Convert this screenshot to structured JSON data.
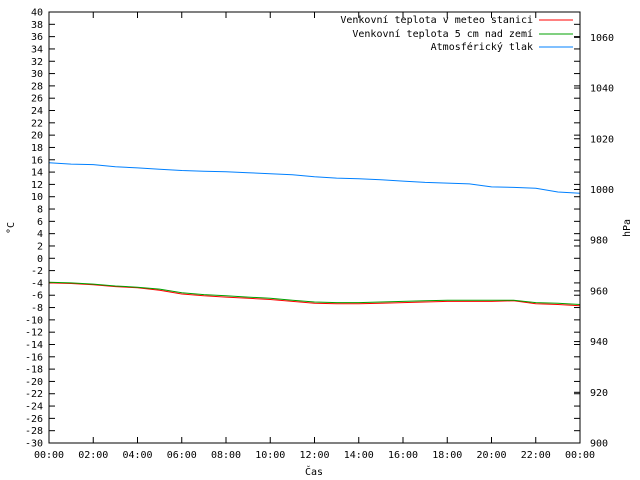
{
  "chart_data": {
    "type": "line",
    "xlabel": "Čas",
    "ylabel": "°C",
    "y2label": "hPa",
    "grid": false,
    "legend_position": "top-right",
    "x_ticks": [
      "00:00",
      "02:00",
      "04:00",
      "06:00",
      "08:00",
      "10:00",
      "12:00",
      "14:00",
      "16:00",
      "18:00",
      "20:00",
      "22:00",
      "00:00"
    ],
    "x_range_hours": [
      0,
      24
    ],
    "y_range": [
      -30,
      40
    ],
    "y_ticks": [
      40,
      38,
      36,
      34,
      32,
      30,
      28,
      26,
      24,
      22,
      20,
      18,
      16,
      14,
      12,
      10,
      8,
      6,
      4,
      2,
      0,
      -2,
      -4,
      -6,
      -8,
      -10,
      -12,
      -14,
      -16,
      -18,
      -20,
      -22,
      -24,
      -26,
      -28,
      -30
    ],
    "y2_range": [
      900,
      1070
    ],
    "y2_ticks": [
      1060,
      1040,
      1020,
      1000,
      980,
      960,
      940,
      920,
      900
    ],
    "series": [
      {
        "name": "Venkovní teplota v meteo stanici",
        "axis": "y",
        "color": "#ff0000",
        "x": [
          0,
          1,
          2,
          3,
          4,
          5,
          6,
          7,
          8,
          9,
          10,
          11,
          12,
          13,
          14,
          15,
          16,
          17,
          18,
          19,
          20,
          21,
          22,
          23,
          24
        ],
        "values": [
          -4.0,
          -4.1,
          -4.3,
          -4.6,
          -4.8,
          -5.2,
          -5.8,
          -6.1,
          -6.3,
          -6.5,
          -6.7,
          -7.0,
          -7.3,
          -7.4,
          -7.4,
          -7.3,
          -7.2,
          -7.1,
          -7.0,
          -7.0,
          -7.0,
          -6.9,
          -7.4,
          -7.5,
          -7.7
        ]
      },
      {
        "name": "Venkovní teplota 5 cm nad zemí",
        "axis": "y",
        "color": "#00a000",
        "x": [
          0,
          1,
          2,
          3,
          4,
          5,
          6,
          7,
          8,
          9,
          10,
          11,
          12,
          13,
          14,
          15,
          16,
          17,
          18,
          19,
          20,
          21,
          22,
          23,
          24
        ],
        "values": [
          -3.9,
          -4.0,
          -4.2,
          -4.5,
          -4.7,
          -5.0,
          -5.6,
          -5.9,
          -6.1,
          -6.3,
          -6.5,
          -6.8,
          -7.1,
          -7.2,
          -7.2,
          -7.1,
          -7.0,
          -6.9,
          -6.8,
          -6.8,
          -6.8,
          -6.8,
          -7.2,
          -7.3,
          -7.5
        ]
      },
      {
        "name": "Atmosférický tlak",
        "axis": "y2",
        "color": "#0080ff",
        "x": [
          0,
          1,
          2,
          3,
          4,
          5,
          6,
          7,
          8,
          9,
          10,
          11,
          12,
          13,
          14,
          15,
          16,
          17,
          18,
          19,
          20,
          21,
          22,
          23,
          24
        ],
        "values": [
          1010.5,
          1010.0,
          1009.8,
          1009.0,
          1008.5,
          1008.0,
          1007.5,
          1007.2,
          1007.0,
          1006.6,
          1006.2,
          1005.8,
          1005.0,
          1004.5,
          1004.2,
          1003.8,
          1003.3,
          1002.8,
          1002.5,
          1002.2,
          1001.0,
          1000.8,
          1000.5,
          999.0,
          998.5
        ]
      }
    ]
  }
}
